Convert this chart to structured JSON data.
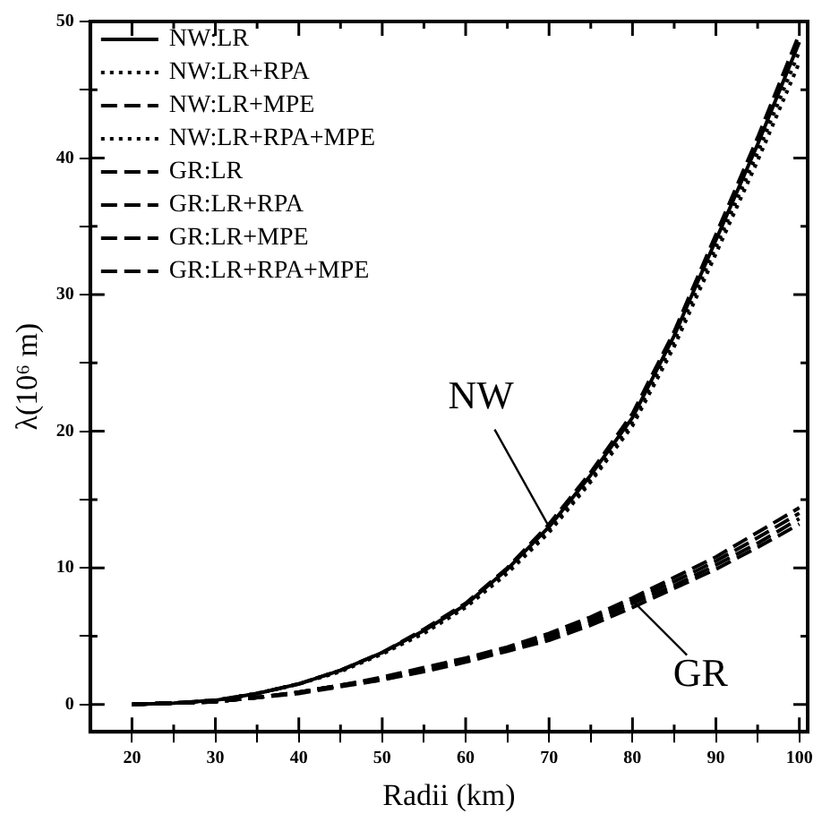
{
  "chart_data": {
    "type": "line",
    "xlabel": "Radii (km)",
    "ylabel": "λ(10⁶ m)",
    "x": [
      20,
      25,
      30,
      35,
      40,
      45,
      50,
      55,
      60,
      65,
      70,
      75,
      80,
      85,
      90,
      95,
      100
    ],
    "series": [
      {
        "name": "NW:LR",
        "color": "#000000",
        "line_style": "solid",
        "values": [
          0,
          0.1,
          0.3,
          0.8,
          1.5,
          2.5,
          3.8,
          5.4,
          7.3,
          9.9,
          13,
          16.8,
          21,
          27,
          34,
          41,
          48.5
        ]
      },
      {
        "name": "NW:LR+RPA",
        "color": "#000000",
        "line_style": "dotted",
        "values": [
          0,
          0.1,
          0.3,
          0.8,
          1.5,
          2.5,
          3.7,
          5.3,
          7.2,
          9.8,
          12.8,
          16.5,
          20.7,
          26.6,
          33.5,
          40.4,
          47.8
        ]
      },
      {
        "name": "NW:LR+MPE",
        "color": "#000000",
        "line_style": "dashed",
        "values": [
          0,
          0.1,
          0.3,
          0.8,
          1.5,
          2.5,
          3.8,
          5.5,
          7.4,
          10,
          13.2,
          17,
          21.3,
          27.3,
          34.4,
          41.5,
          49.1
        ]
      },
      {
        "name": "NW:LR+RPA+MPE",
        "color": "#000000",
        "line_style": "dotted",
        "values": [
          0,
          0.1,
          0.3,
          0.8,
          1.5,
          2.4,
          3.7,
          5.2,
          7.1,
          9.6,
          12.6,
          16.3,
          20.4,
          26.2,
          33,
          39.8,
          47
        ]
      },
      {
        "name": "GR:LR",
        "color": "#000000",
        "line_style": "dashed",
        "values": [
          0,
          0.1,
          0.2,
          0.5,
          0.9,
          1.4,
          1.9,
          2.6,
          3.3,
          4.1,
          5,
          6.2,
          7.6,
          9,
          10.5,
          12.2,
          14
        ]
      },
      {
        "name": "GR:LR+RPA",
        "color": "#000000",
        "line_style": "dashed",
        "values": [
          0,
          0.1,
          0.2,
          0.5,
          0.9,
          1.4,
          1.8,
          2.5,
          3.2,
          4,
          4.9,
          6,
          7.4,
          8.7,
          10.2,
          11.8,
          13.6
        ]
      },
      {
        "name": "GR:LR+MPE",
        "color": "#000000",
        "line_style": "dashed",
        "values": [
          0,
          0.1,
          0.2,
          0.5,
          0.9,
          1.4,
          2,
          2.7,
          3.4,
          4.2,
          5.2,
          6.4,
          7.8,
          9.3,
          10.8,
          12.6,
          14.4
        ]
      },
      {
        "name": "GR:LR+RPA+MPE",
        "color": "#000000",
        "line_style": "dashed",
        "values": [
          0,
          0.1,
          0.2,
          0.5,
          0.8,
          1.3,
          1.8,
          2.4,
          3.1,
          3.9,
          4.7,
          5.8,
          7.1,
          8.5,
          9.9,
          11.5,
          13.2
        ]
      }
    ],
    "annotations": [
      {
        "text": "NW",
        "x": 70,
        "y": 13
      },
      {
        "text": "GR",
        "x": 80,
        "y": 7.6
      }
    ],
    "xlim": [
      15,
      101
    ],
    "ylim": [
      -2,
      50
    ],
    "xticks": [
      20,
      {
        "value": 25,
        "label": null
      },
      30,
      {
        "value": 35,
        "label": null
      },
      40,
      {
        "value": 45,
        "label": null
      },
      50,
      {
        "value": 55,
        "label": null
      },
      60,
      {
        "value": 65,
        "label": null
      },
      70,
      {
        "value": 75,
        "label": null
      },
      80,
      {
        "value": 85,
        "label": null
      },
      90,
      {
        "value": 95,
        "label": null
      },
      100
    ],
    "yticks": [
      0,
      {
        "value": 5,
        "label": null
      },
      10,
      {
        "value": 15,
        "label": null
      },
      20,
      {
        "value": 25,
        "label": null
      },
      30,
      {
        "value": 35,
        "label": null
      },
      40,
      {
        "value": 45,
        "label": null
      },
      50
    ],
    "grid": false,
    "legend": "top left",
    "marker": "none"
  }
}
